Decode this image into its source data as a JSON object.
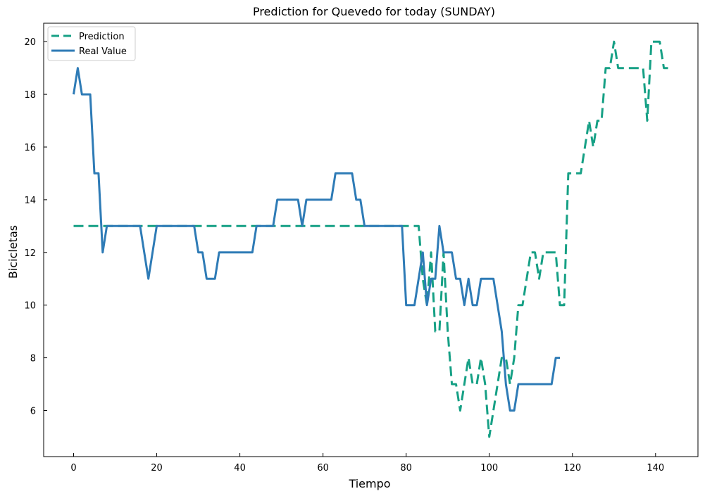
{
  "chart_data": {
    "type": "line",
    "title": "Prediction for Quevedo for today (SUNDAY)",
    "xlabel": "Tiempo",
    "ylabel": "Bicicletas",
    "xlim": [
      -7.2,
      150.2
    ],
    "ylim": [
      4.25,
      20.7
    ],
    "x_ticks": [
      0,
      20,
      40,
      60,
      80,
      100,
      120,
      140
    ],
    "y_ticks": [
      6,
      8,
      10,
      12,
      14,
      16,
      18,
      20
    ],
    "grid": false,
    "legend_position": "top-left",
    "series": [
      {
        "name": "Prediction",
        "color": "#16a085",
        "dash": "dashed",
        "points": [
          [
            0,
            13
          ],
          [
            83,
            13
          ],
          [
            84,
            11
          ],
          [
            85,
            10
          ],
          [
            86,
            12
          ],
          [
            87,
            9
          ],
          [
            88,
            9
          ],
          [
            89,
            12
          ],
          [
            90,
            9
          ],
          [
            91,
            7
          ],
          [
            92,
            7
          ],
          [
            93,
            6
          ],
          [
            94,
            7
          ],
          [
            95,
            8
          ],
          [
            96,
            7
          ],
          [
            97,
            7
          ],
          [
            98,
            8
          ],
          [
            99,
            7
          ],
          [
            100,
            5
          ],
          [
            101,
            6
          ],
          [
            102,
            7
          ],
          [
            103,
            8
          ],
          [
            104,
            8
          ],
          [
            105,
            7
          ],
          [
            106,
            8
          ],
          [
            107,
            10
          ],
          [
            108,
            10
          ],
          [
            109,
            11
          ],
          [
            110,
            12
          ],
          [
            111,
            12
          ],
          [
            112,
            11
          ],
          [
            113,
            12
          ],
          [
            114,
            12
          ],
          [
            115,
            12
          ],
          [
            116,
            12
          ],
          [
            117,
            10
          ],
          [
            118,
            10
          ],
          [
            119,
            15
          ],
          [
            120,
            15
          ],
          [
            121,
            15
          ],
          [
            122,
            15
          ],
          [
            123,
            16
          ],
          [
            124,
            17
          ],
          [
            125,
            16
          ],
          [
            126,
            17
          ],
          [
            127,
            17
          ],
          [
            128,
            19
          ],
          [
            129,
            19
          ],
          [
            130,
            20
          ],
          [
            131,
            19
          ],
          [
            132,
            19
          ],
          [
            133,
            19
          ],
          [
            134,
            19
          ],
          [
            135,
            19
          ],
          [
            136,
            19
          ],
          [
            137,
            19
          ],
          [
            138,
            17
          ],
          [
            139,
            20
          ],
          [
            140,
            20
          ],
          [
            141,
            20
          ],
          [
            142,
            19
          ],
          [
            143,
            19
          ]
        ]
      },
      {
        "name": "Real Value",
        "color": "#2e7bb6",
        "dash": "solid",
        "points": [
          [
            0,
            18
          ],
          [
            1,
            19
          ],
          [
            2,
            18
          ],
          [
            3,
            18
          ],
          [
            4,
            18
          ],
          [
            5,
            15
          ],
          [
            6,
            15
          ],
          [
            7,
            12
          ],
          [
            8,
            13
          ],
          [
            16,
            13
          ],
          [
            17,
            12
          ],
          [
            18,
            11
          ],
          [
            19,
            12
          ],
          [
            20,
            13
          ],
          [
            29,
            13
          ],
          [
            30,
            12
          ],
          [
            31,
            12
          ],
          [
            32,
            11
          ],
          [
            34,
            11
          ],
          [
            35,
            12
          ],
          [
            43,
            12
          ],
          [
            44,
            13
          ],
          [
            48,
            13
          ],
          [
            49,
            14
          ],
          [
            54,
            14
          ],
          [
            55,
            13
          ],
          [
            56,
            14
          ],
          [
            62,
            14
          ],
          [
            63,
            15
          ],
          [
            67,
            15
          ],
          [
            68,
            14
          ],
          [
            69,
            14
          ],
          [
            70,
            13
          ],
          [
            79,
            13
          ],
          [
            80,
            10
          ],
          [
            82,
            10
          ],
          [
            83,
            11
          ],
          [
            84,
            12
          ],
          [
            85,
            10
          ],
          [
            86,
            11
          ],
          [
            87,
            11
          ],
          [
            88,
            13
          ],
          [
            89,
            12
          ],
          [
            91,
            12
          ],
          [
            92,
            11
          ],
          [
            93,
            11
          ],
          [
            94,
            10
          ],
          [
            95,
            11
          ],
          [
            96,
            10
          ],
          [
            97,
            10
          ],
          [
            98,
            11
          ],
          [
            101,
            11
          ],
          [
            102,
            10
          ],
          [
            103,
            9
          ],
          [
            104,
            7
          ],
          [
            105,
            6
          ],
          [
            106,
            6
          ],
          [
            107,
            7
          ],
          [
            114,
            7
          ],
          [
            115,
            7
          ],
          [
            116,
            8
          ],
          [
            117,
            8
          ]
        ]
      }
    ]
  }
}
